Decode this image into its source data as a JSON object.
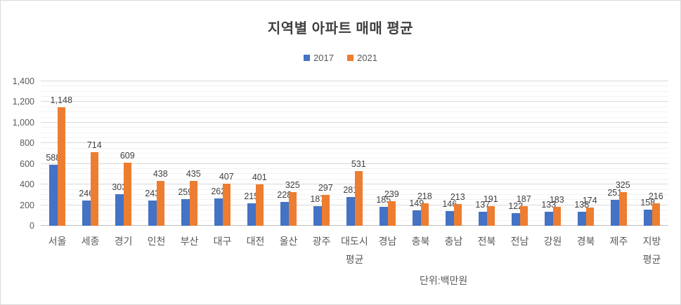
{
  "chart_data": {
    "type": "bar",
    "title": "지역별 아파트 매매 평균",
    "footnote": "단위:백만원",
    "categories": [
      "서울",
      "세종",
      "경기",
      "인천",
      "부산",
      "대구",
      "대전",
      "울산",
      "광주",
      "대도시\n평균",
      "경남",
      "충북",
      "충남",
      "전북",
      "전남",
      "강원",
      "경북",
      "제주",
      "지방\n평균"
    ],
    "series": [
      {
        "name": "2017",
        "color": "#4472C4",
        "values": [
          588,
          246,
          303,
          243,
          259,
          262,
          215,
          228,
          187,
          281,
          185,
          149,
          146,
          137,
          122,
          133,
          138,
          251,
          158
        ]
      },
      {
        "name": "2021",
        "color": "#ED7D31",
        "values": [
          1148,
          714,
          609,
          438,
          435,
          407,
          401,
          325,
          297,
          531,
          239,
          218,
          213,
          191,
          187,
          183,
          174,
          325,
          216
        ]
      }
    ],
    "ylim": [
      0,
      1400
    ],
    "y_major_step": 200,
    "y_minor_step": 50,
    "y_tick_labels": [
      "0",
      "200",
      "400",
      "600",
      "800",
      "1,000",
      "1,200",
      "1,400"
    ],
    "grid": true,
    "legend_position": "top-center",
    "data_labels": true,
    "colors": {
      "grid_major": "#D9D9D9",
      "grid_minor": "#F2F2F2",
      "axis_line": "#BFBFBF",
      "axis_text": "#595959",
      "data_label_text": "#404040",
      "title_text": "#404040",
      "canvas_border": "#D9D9D9"
    }
  }
}
